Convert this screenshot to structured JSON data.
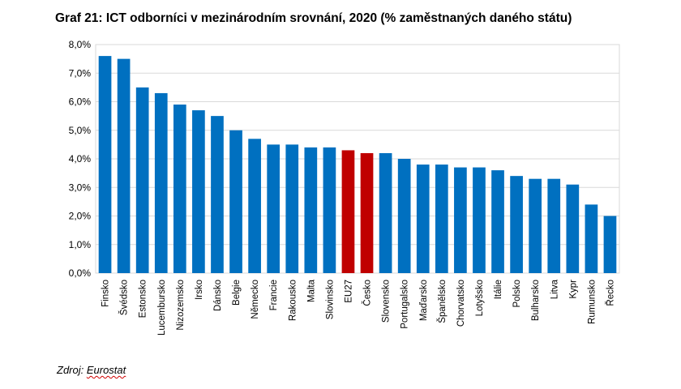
{
  "chart_data": {
    "type": "bar",
    "title": "Graf 21: ICT odborníci v mezinárodním srovnání, 2020 (% zaměstnaných daného státu)",
    "categories": [
      "Finsko",
      "Švédsko",
      "Estonsko",
      "Lucembursko",
      "Nizozemsko",
      "Irsko",
      "Dánsko",
      "Belgie",
      "Německo",
      "Francie",
      "Rakousko",
      "Malta",
      "Slovinsko",
      "EU27",
      "Česko",
      "Slovensko",
      "Portugalsko",
      "Maďarsko",
      "Španělsko",
      "Chorvatsko",
      "Lotyšsko",
      "Itálie",
      "Polsko",
      "Bulharsko",
      "Litva",
      "Kypr",
      "Rumunsko",
      "Řecko"
    ],
    "values": [
      7.6,
      7.5,
      6.5,
      6.3,
      5.9,
      5.7,
      5.5,
      5.0,
      4.7,
      4.5,
      4.5,
      4.4,
      4.4,
      4.3,
      4.2,
      4.2,
      4.0,
      3.8,
      3.8,
      3.7,
      3.7,
      3.6,
      3.4,
      3.3,
      3.3,
      3.1,
      2.4,
      2.0
    ],
    "highlighted": [
      "EU27",
      "Česko"
    ],
    "ylim": [
      0,
      8
    ],
    "yticks": [
      "0,0%",
      "1,0%",
      "2,0%",
      "3,0%",
      "4,0%",
      "5,0%",
      "6,0%",
      "7,0%",
      "8,0%"
    ],
    "grid": true,
    "colors": {
      "bar": "#0070C0",
      "highlight": "#C00000",
      "grid": "#D9D9D9"
    }
  },
  "source": {
    "prefix": "Zdroj: ",
    "name": "Eurostat"
  }
}
